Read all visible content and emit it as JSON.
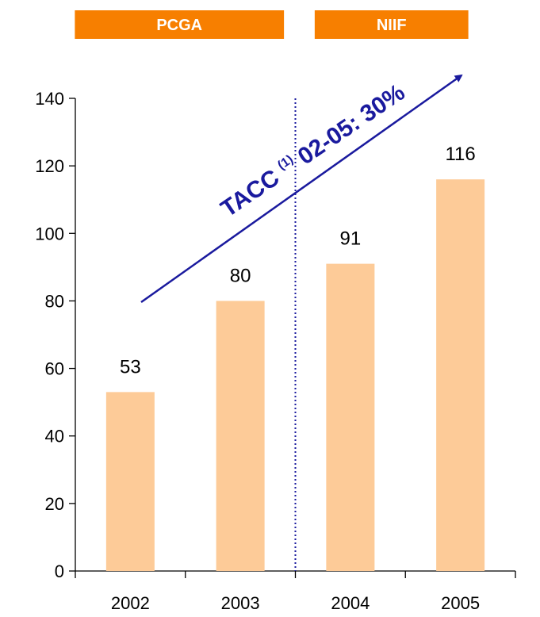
{
  "chart_data": {
    "type": "bar",
    "categories": [
      "2002",
      "2003",
      "2004",
      "2005"
    ],
    "values": [
      53,
      80,
      91,
      116
    ],
    "data_labels": [
      "53",
      "80",
      "91",
      "116"
    ],
    "ylim": [
      0,
      140
    ],
    "yticks": [
      0,
      20,
      40,
      60,
      80,
      100,
      120,
      140
    ],
    "grid": false,
    "bar_color": "#fdcb98",
    "divider_after_category": "2003",
    "divider_color": "#1a1a9e",
    "standards": [
      {
        "label": "PCGA",
        "categories": [
          "2002",
          "2003"
        ]
      },
      {
        "label": "NIIF",
        "categories": [
          "2004",
          "2005"
        ]
      }
    ],
    "standard_color": "#f77f00",
    "annotation": {
      "prefix": "TACC ",
      "superscript": "(1)",
      "suffix": " 02-05: 30%",
      "color": "#1a1a9e"
    }
  }
}
